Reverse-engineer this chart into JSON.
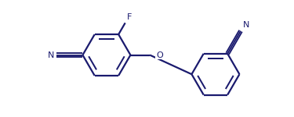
{
  "background_color": "#ffffff",
  "bond_color": "#1a1a6e",
  "lw": 1.6,
  "figsize": [
    3.75,
    1.5
  ],
  "dpi": 100,
  "xlim": [
    -0.5,
    7.8
  ],
  "ylim": [
    -1.6,
    1.4
  ]
}
